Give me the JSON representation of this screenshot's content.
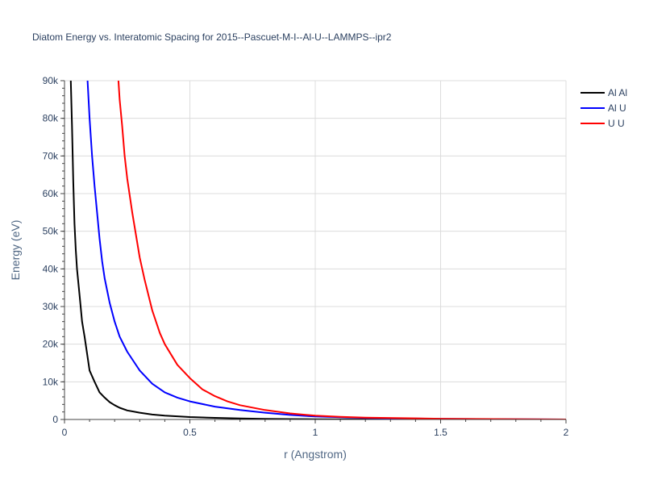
{
  "chart_data": {
    "type": "line",
    "title": "Diatom Energy vs. Interatomic Spacing for 2015--Pascuet-M-I--Al-U--LAMMPS--ipr2",
    "xlabel": "r (Angstrom)",
    "ylabel": "Energy (eV)",
    "xlim": [
      0,
      2
    ],
    "ylim": [
      0,
      90000
    ],
    "xticks": [
      0,
      0.5,
      1,
      1.5,
      2
    ],
    "xtick_labels": [
      "0",
      "0.5",
      "1",
      "1.5",
      "2"
    ],
    "yticks": [
      0,
      10000,
      20000,
      30000,
      40000,
      50000,
      60000,
      70000,
      80000,
      90000
    ],
    "ytick_labels": [
      "0",
      "10k",
      "20k",
      "30k",
      "40k",
      "50k",
      "60k",
      "70k",
      "80k",
      "90k"
    ],
    "grid": true,
    "legend_position": "top-right",
    "series": [
      {
        "name": "Al Al",
        "color": "#000000",
        "x": [
          0.025,
          0.03,
          0.035,
          0.04,
          0.045,
          0.05,
          0.06,
          0.07,
          0.08,
          0.1,
          0.12,
          0.14,
          0.16,
          0.18,
          0.2,
          0.22,
          0.25,
          0.3,
          0.35,
          0.4,
          0.5,
          0.6,
          0.7,
          0.8,
          0.9,
          1.0,
          1.2,
          1.5,
          2.0
        ],
        "y": [
          90000,
          78000,
          63000,
          52000,
          45000,
          40000,
          33000,
          26000,
          22000,
          13000,
          10000,
          7200,
          5800,
          4600,
          3800,
          3100,
          2400,
          1800,
          1300,
          1000,
          650,
          420,
          280,
          180,
          110,
          60,
          20,
          5,
          0
        ]
      },
      {
        "name": "Al U",
        "color": "#0000ff",
        "x": [
          0.092,
          0.1,
          0.11,
          0.12,
          0.13,
          0.14,
          0.15,
          0.16,
          0.18,
          0.2,
          0.22,
          0.25,
          0.28,
          0.3,
          0.35,
          0.4,
          0.45,
          0.5,
          0.6,
          0.7,
          0.8,
          0.9,
          1.0,
          1.2,
          1.5,
          2.0
        ],
        "y": [
          90000,
          80000,
          70000,
          62000,
          55000,
          48000,
          42000,
          37500,
          31000,
          26000,
          22000,
          18000,
          15000,
          13000,
          9500,
          7200,
          5800,
          4800,
          3400,
          2500,
          1800,
          1200,
          800,
          400,
          150,
          0
        ]
      },
      {
        "name": "U U",
        "color": "#ff0000",
        "x": [
          0.215,
          0.22,
          0.23,
          0.24,
          0.25,
          0.27,
          0.3,
          0.32,
          0.35,
          0.38,
          0.4,
          0.45,
          0.5,
          0.55,
          0.6,
          0.65,
          0.7,
          0.8,
          0.9,
          1.0,
          1.1,
          1.2,
          1.5,
          2.0
        ],
        "y": [
          90000,
          85000,
          78000,
          70000,
          64000,
          55000,
          43000,
          37000,
          29000,
          23000,
          20000,
          14500,
          11000,
          8000,
          6200,
          4800,
          3800,
          2500,
          1600,
          1000,
          700,
          500,
          200,
          0
        ]
      }
    ]
  }
}
